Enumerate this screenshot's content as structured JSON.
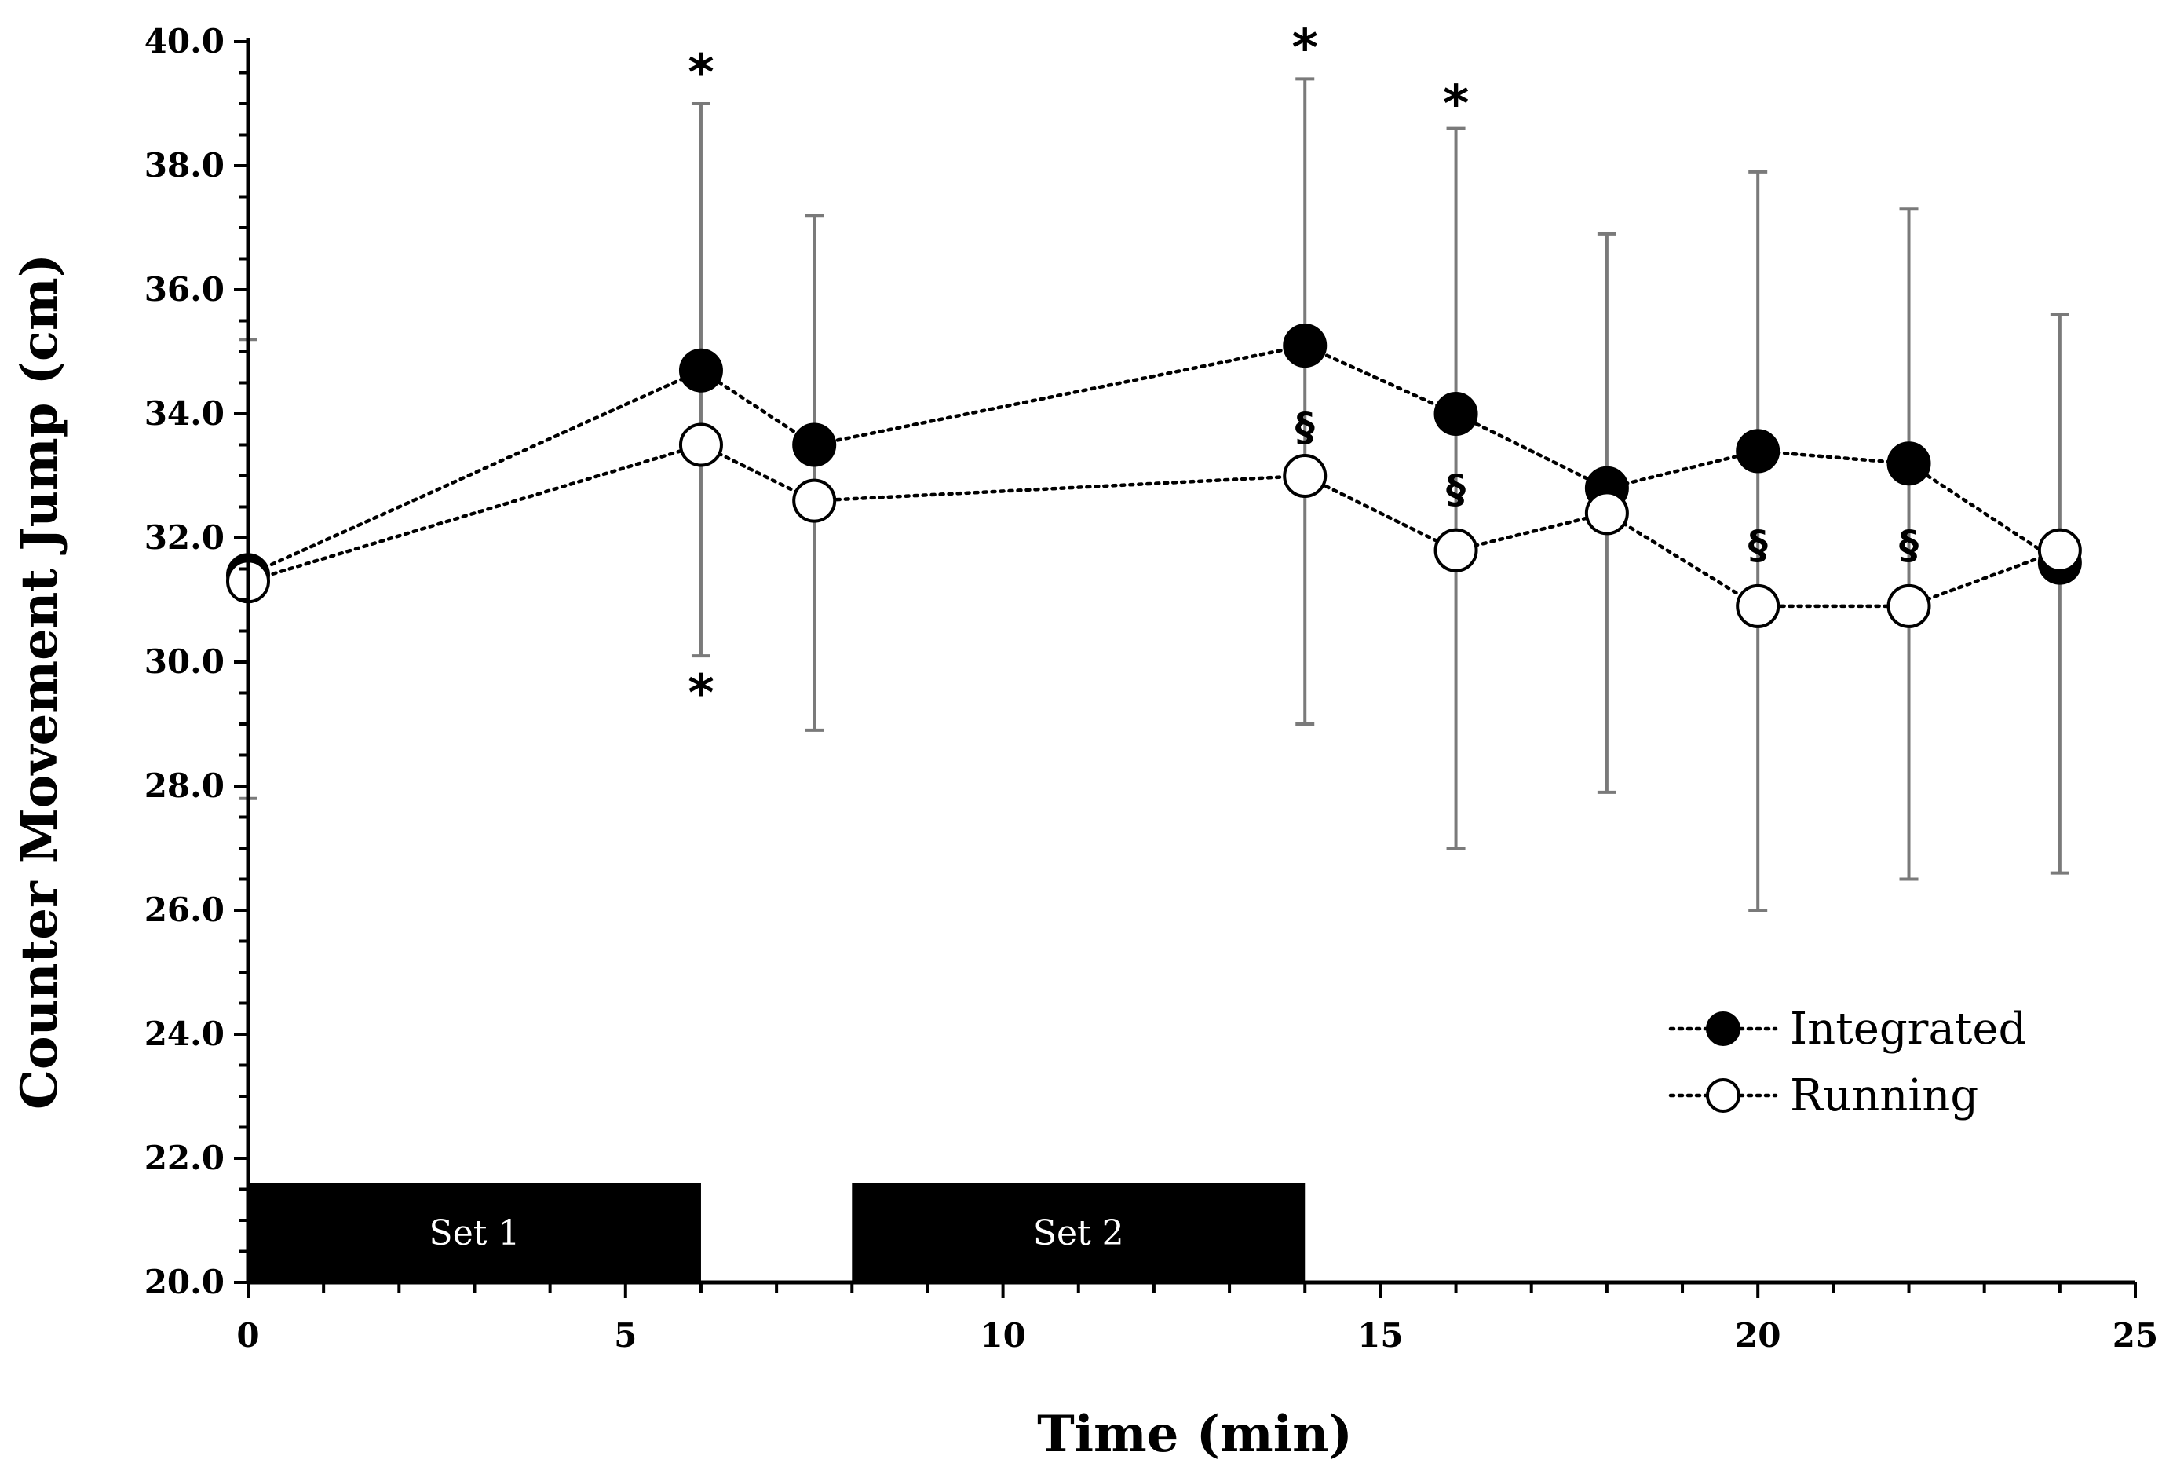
{
  "chart_data": {
    "type": "line",
    "title": "",
    "xlabel": "Time (min)",
    "ylabel": "Counter Movement Jump (cm)",
    "xlim": [
      0,
      25
    ],
    "ylim": [
      20.0,
      40.0
    ],
    "x_ticks": [
      0,
      5,
      10,
      15,
      20,
      25
    ],
    "y_ticks": [
      "20.0",
      "22.0",
      "24.0",
      "26.0",
      "28.0",
      "30.0",
      "32.0",
      "34.0",
      "36.0",
      "38.0",
      "40.0"
    ],
    "grid": false,
    "legend_position": "bottom-right",
    "series": [
      {
        "name": "Integrated",
        "marker": "filled-circle",
        "color": "#000000",
        "x": [
          0,
          6,
          7.5,
          14,
          16,
          18,
          20,
          22,
          24
        ],
        "y": [
          31.4,
          34.7,
          33.5,
          35.1,
          34.0,
          32.8,
          33.4,
          33.2,
          31.6
        ],
        "error_upper": [
          35.2,
          39.0,
          37.2,
          39.4,
          38.6,
          36.9,
          37.9,
          37.3,
          35.6
        ],
        "error_lower": [
          27.8,
          30.1,
          28.9,
          29.0,
          27.0,
          27.9,
          26.0,
          26.5,
          26.6
        ]
      },
      {
        "name": "Running",
        "marker": "open-circle",
        "color": "#ffffff",
        "x": [
          0,
          6,
          7.5,
          14,
          16,
          18,
          20,
          22,
          24
        ],
        "y": [
          31.3,
          33.5,
          32.6,
          33.0,
          31.8,
          32.4,
          30.9,
          30.9,
          31.8
        ]
      }
    ],
    "bars": [
      {
        "label": "Set 1",
        "x_start": 0,
        "x_end": 6,
        "y_top": 21.6
      },
      {
        "label": "Set 2",
        "x_start": 8,
        "x_end": 14,
        "y_top": 21.6
      }
    ],
    "annotations": [
      {
        "text": "*",
        "x": 6,
        "y": 39.6
      },
      {
        "text": "*",
        "x": 6,
        "y": 29.6
      },
      {
        "text": "*",
        "x": 14,
        "y": 40.0
      },
      {
        "text": "*",
        "x": 16,
        "y": 39.1
      },
      {
        "text": "§",
        "x": 14,
        "y": 33.8
      },
      {
        "text": "§",
        "x": 16,
        "y": 32.8
      },
      {
        "text": "§",
        "x": 20,
        "y": 31.9
      },
      {
        "text": "§",
        "x": 22,
        "y": 31.9
      }
    ]
  }
}
